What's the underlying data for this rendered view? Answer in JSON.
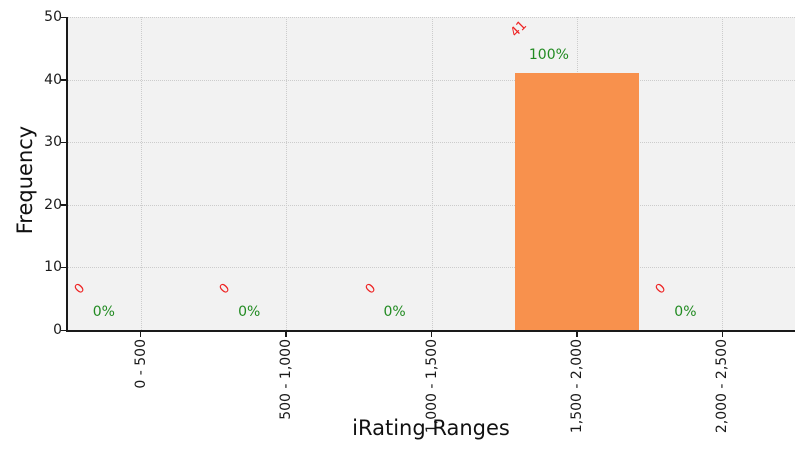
{
  "chart_data": {
    "type": "bar",
    "title": "",
    "xlabel": "iRating Ranges",
    "ylabel": "Frequency",
    "categories": [
      "0 - 500",
      "500 - 1,000",
      "1,000 - 1,500",
      "1,500 - 2,000",
      "2,000 - 2,500"
    ],
    "values": [
      0,
      0,
      0,
      41,
      0
    ],
    "bar_value_labels": [
      "0",
      "0",
      "0",
      "41",
      "0"
    ],
    "percent_labels": [
      "0%",
      "0%",
      "0%",
      "100%",
      "0%"
    ],
    "yticks": [
      0,
      10,
      20,
      30,
      40,
      50
    ],
    "ylim": [
      0,
      50
    ],
    "grid": "dotted",
    "legend_position": "none",
    "layout_hints": {
      "xtick_rotation_deg": 90,
      "value_label_rotation_deg": 45,
      "plot_background_shown": true
    },
    "colors": {
      "bar": "#f8914d",
      "value_label": "#ee2222",
      "percent_label": "#228b22",
      "plot_background": "#f2f2f2",
      "grid_line": "#cccccc",
      "axis_line": "#1a1a1a",
      "tick_label": "#1a1a1a"
    }
  }
}
